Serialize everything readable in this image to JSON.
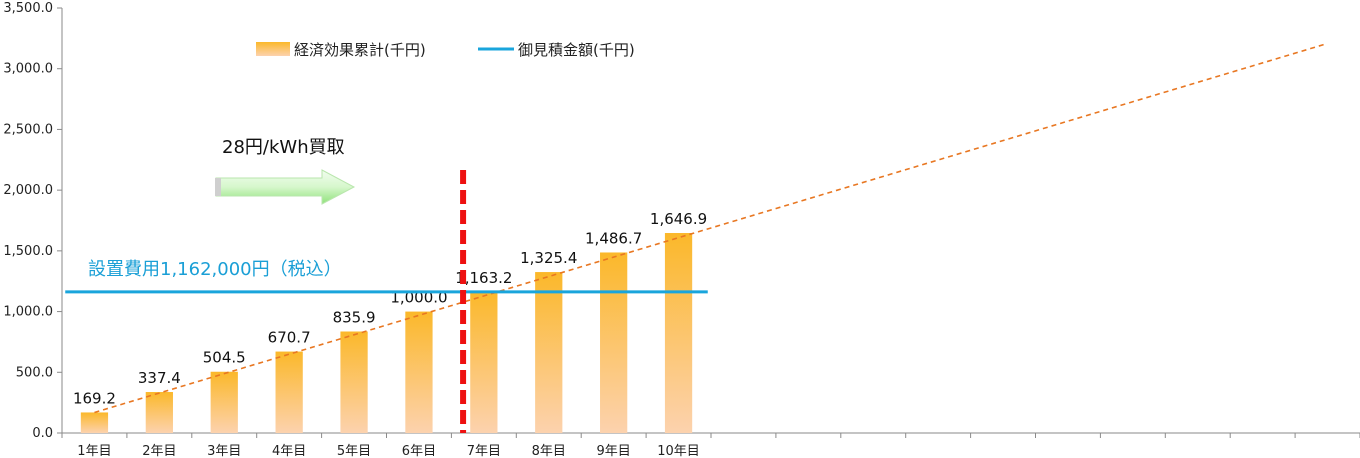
{
  "chart_data": {
    "type": "bar",
    "categories": [
      "1年目",
      "2年目",
      "3年目",
      "4年目",
      "5年目",
      "6年目",
      "7年目",
      "8年目",
      "9年目",
      "10年目"
    ],
    "series": [
      {
        "name": "経済効果累計(千円)",
        "type": "bar",
        "values": [
          169.2,
          337.4,
          504.5,
          670.7,
          835.9,
          1000.0,
          1163.2,
          1325.4,
          1486.7,
          1646.9
        ],
        "labels": [
          "169.2",
          "337.4",
          "504.5",
          "670.7",
          "835.9",
          "1,000.0",
          "1,163.2",
          "1,325.4",
          "1,486.7",
          "1,646.9"
        ],
        "color": "#f9b320"
      },
      {
        "name": "御見積金額(千円)",
        "type": "line",
        "value": 1162,
        "color": "#19a5dc"
      }
    ],
    "trendline": {
      "from_category": 1,
      "from_value": 169.2,
      "to_category": 20,
      "to_value": 3200,
      "color": "#e87722"
    },
    "marker": {
      "between_categories": [
        6,
        7
      ],
      "color": "#ee1111"
    },
    "yticks": [
      "0.0",
      "500.0",
      "1,000.0",
      "1,500.0",
      "2,000.0",
      "2,500.0",
      "3,000.0",
      "3,500.0"
    ],
    "ylim": [
      0,
      3500
    ],
    "x_slots": 20,
    "annotations": {
      "feed_in": "28円/kWh買取",
      "cost": "設置費用1,162,000円（税込）"
    },
    "title": "",
    "xlabel": "",
    "ylabel": ""
  }
}
